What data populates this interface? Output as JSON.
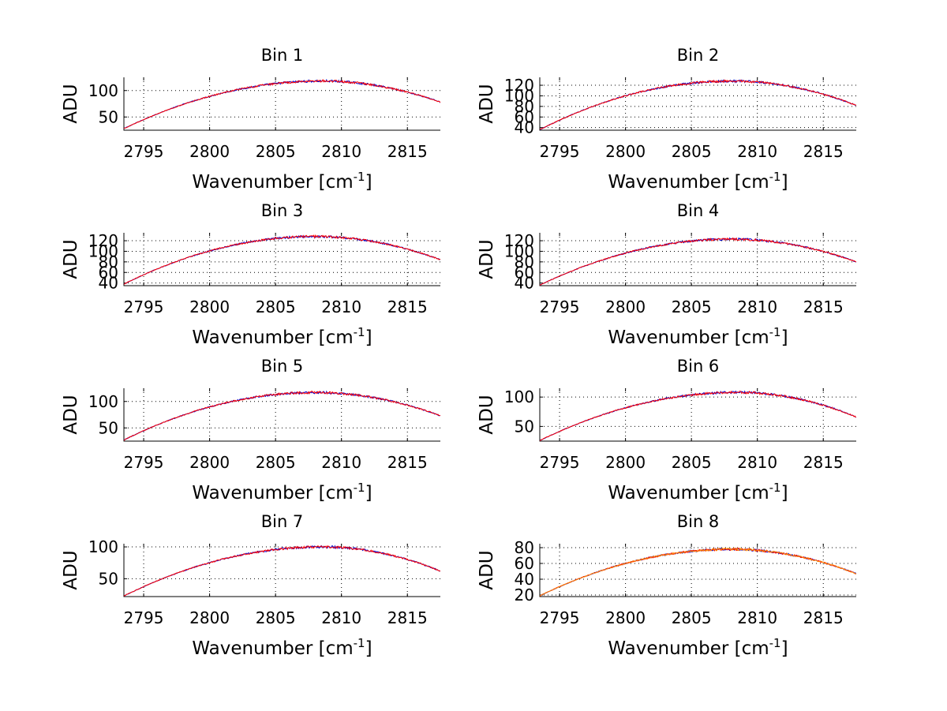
{
  "chart_data": [
    {
      "type": "line",
      "title": "Bin 1",
      "xlabel": "Wavenumber [cm",
      "xlabel_sup": "-1",
      "xlabel_end": "]",
      "ylabel": "ADU",
      "xlim": [
        2793.5,
        2817.5
      ],
      "ylim": [
        25,
        125
      ],
      "xticks": [
        "2795",
        "2800",
        "2805",
        "2810",
        "2815"
      ],
      "yticks": [
        "50",
        "100"
      ],
      "peak_x": 2808.5,
      "peak_y": 118,
      "start_y": 28,
      "end_y": 78,
      "series": [
        {
          "name": "blue",
          "color": "#0000cc"
        },
        {
          "name": "red",
          "color": "#ff0000"
        }
      ]
    },
    {
      "type": "line",
      "title": "Bin 2",
      "xlabel": "Wavenumber [cm",
      "xlabel_sup": "-1",
      "xlabel_end": "]",
      "ylabel": "ADU",
      "xlim": [
        2793.5,
        2817.5
      ],
      "ylim": [
        35,
        135
      ],
      "xticks": [
        "2795",
        "2800",
        "2805",
        "2810",
        "2815"
      ],
      "yticks": [
        "40",
        "60",
        "80",
        "100",
        "120"
      ],
      "peak_x": 2808.0,
      "peak_y": 128,
      "start_y": 36,
      "end_y": 82,
      "series": [
        {
          "name": "blue",
          "color": "#0000cc"
        },
        {
          "name": "red",
          "color": "#ff0000"
        }
      ]
    },
    {
      "type": "line",
      "title": "Bin 3",
      "xlabel": "Wavenumber [cm",
      "xlabel_sup": "-1",
      "xlabel_end": "]",
      "ylabel": "ADU",
      "xlim": [
        2793.5,
        2817.5
      ],
      "ylim": [
        35,
        135
      ],
      "xticks": [
        "2795",
        "2800",
        "2805",
        "2810",
        "2815"
      ],
      "yticks": [
        "40",
        "60",
        "80",
        "100",
        "120"
      ],
      "peak_x": 2808.0,
      "peak_y": 128,
      "start_y": 38,
      "end_y": 84,
      "series": [
        {
          "name": "blue",
          "color": "#0000cc"
        },
        {
          "name": "red",
          "color": "#ff0000"
        }
      ]
    },
    {
      "type": "line",
      "title": "Bin 4",
      "xlabel": "Wavenumber [cm",
      "xlabel_sup": "-1",
      "xlabel_end": "]",
      "ylabel": "ADU",
      "xlim": [
        2793.5,
        2817.5
      ],
      "ylim": [
        35,
        135
      ],
      "xticks": [
        "2795",
        "2800",
        "2805",
        "2810",
        "2815"
      ],
      "yticks": [
        "40",
        "60",
        "80",
        "100",
        "120"
      ],
      "peak_x": 2808.0,
      "peak_y": 123,
      "start_y": 36,
      "end_y": 80,
      "series": [
        {
          "name": "blue",
          "color": "#0000cc"
        },
        {
          "name": "red",
          "color": "#ff0000"
        }
      ]
    },
    {
      "type": "line",
      "title": "Bin 5",
      "xlabel": "Wavenumber [cm",
      "xlabel_sup": "-1",
      "xlabel_end": "]",
      "ylabel": "ADU",
      "xlim": [
        2793.5,
        2817.5
      ],
      "ylim": [
        25,
        125
      ],
      "xticks": [
        "2795",
        "2800",
        "2805",
        "2810",
        "2815"
      ],
      "yticks": [
        "50",
        "100"
      ],
      "peak_x": 2808.0,
      "peak_y": 117,
      "start_y": 27,
      "end_y": 73,
      "series": [
        {
          "name": "blue",
          "color": "#0000cc"
        },
        {
          "name": "red",
          "color": "#ff0000"
        }
      ]
    },
    {
      "type": "line",
      "title": "Bin 6",
      "xlabel": "Wavenumber [cm",
      "xlabel_sup": "-1",
      "xlabel_end": "]",
      "ylabel": "ADU",
      "xlim": [
        2793.5,
        2817.5
      ],
      "ylim": [
        25,
        115
      ],
      "xticks": [
        "2795",
        "2800",
        "2805",
        "2810",
        "2815"
      ],
      "yticks": [
        "50",
        "100"
      ],
      "peak_x": 2808.5,
      "peak_y": 108,
      "start_y": 26,
      "end_y": 66,
      "series": [
        {
          "name": "blue",
          "color": "#0000cc"
        },
        {
          "name": "red",
          "color": "#ff0000"
        }
      ]
    },
    {
      "type": "line",
      "title": "Bin 7",
      "xlabel": "Wavenumber [cm",
      "xlabel_sup": "-1",
      "xlabel_end": "]",
      "ylabel": "ADU",
      "xlim": [
        2793.5,
        2817.5
      ],
      "ylim": [
        22,
        105
      ],
      "xticks": [
        "2795",
        "2800",
        "2805",
        "2810",
        "2815"
      ],
      "yticks": [
        "50",
        "100"
      ],
      "peak_x": 2808.5,
      "peak_y": 100,
      "start_y": 23,
      "end_y": 62,
      "series": [
        {
          "name": "blue",
          "color": "#0000cc"
        },
        {
          "name": "red",
          "color": "#ff0000"
        }
      ]
    },
    {
      "type": "line",
      "title": "Bin 8",
      "xlabel": "Wavenumber [cm",
      "xlabel_sup": "-1",
      "xlabel_end": "]",
      "ylabel": "ADU",
      "xlim": [
        2793.5,
        2817.5
      ],
      "ylim": [
        18,
        85
      ],
      "xticks": [
        "2795",
        "2800",
        "2805",
        "2810",
        "2815"
      ],
      "yticks": [
        "20",
        "40",
        "60",
        "80"
      ],
      "peak_x": 2808.0,
      "peak_y": 78,
      "start_y": 19,
      "end_y": 47,
      "series": [
        {
          "name": "blue",
          "color": "#0000cc"
        },
        {
          "name": "red",
          "color": "#ff0000"
        },
        {
          "name": "orange",
          "color": "#ff8800"
        }
      ]
    }
  ]
}
